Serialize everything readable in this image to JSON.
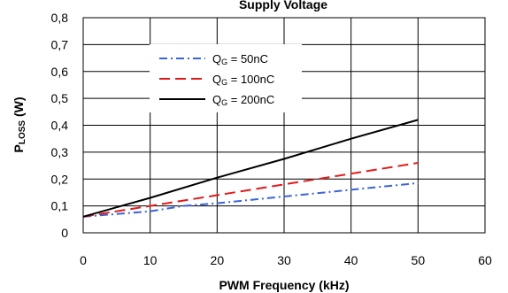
{
  "chart_data": {
    "type": "line",
    "title": "Supply Voltage",
    "xlabel": "PWM Frequency (kHz)",
    "ylabel": {
      "main": "P",
      "sub": "LOSS",
      "unit": " (W)"
    },
    "xlim": [
      0,
      60
    ],
    "ylim": [
      0,
      0.8
    ],
    "xticks": [
      "0",
      "10",
      "20",
      "30",
      "40",
      "50",
      "60"
    ],
    "yticks": [
      "0",
      "0,1",
      "0,2",
      "0,3",
      "0,4",
      "0,5",
      "0,6",
      "0,7",
      "0,8"
    ],
    "grid": true,
    "legend_position": "top-center",
    "series": [
      {
        "name": {
          "main": "Q",
          "sub": "G",
          "rest": " = 50nC"
        },
        "color": "#3b63d6",
        "style": "dash-dot",
        "points": [
          [
            0,
            0.06
          ],
          [
            10,
            0.08
          ],
          [
            15,
            0.1
          ],
          [
            20,
            0.11
          ],
          [
            30,
            0.135
          ],
          [
            40,
            0.16
          ],
          [
            50,
            0.185
          ]
        ]
      },
      {
        "name": {
          "main": "Q",
          "sub": "G",
          "rest": " = 100nC"
        },
        "color": "#e01b1b",
        "style": "dashed",
        "points": [
          [
            0,
            0.06
          ],
          [
            10,
            0.1
          ],
          [
            20,
            0.14
          ],
          [
            30,
            0.18
          ],
          [
            40,
            0.22
          ],
          [
            50,
            0.26
          ]
        ]
      },
      {
        "name": {
          "main": "Q",
          "sub": "G",
          "rest": " = 200nC"
        },
        "color": "#000000",
        "style": "solid",
        "points": [
          [
            0,
            0.06
          ],
          [
            10,
            0.13
          ],
          [
            20,
            0.205
          ],
          [
            30,
            0.275
          ],
          [
            40,
            0.35
          ],
          [
            50,
            0.42
          ]
        ]
      }
    ]
  }
}
